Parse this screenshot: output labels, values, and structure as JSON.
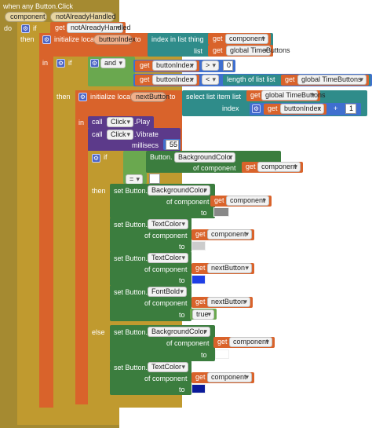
{
  "event": {
    "header": "when any Button.Click",
    "params": [
      "component",
      "notAlreadyHandled"
    ],
    "do_label": "do"
  },
  "outer_if": {
    "if_label": "if",
    "get_label": "get",
    "condition_var": "notAlreadyHandled",
    "then_label": "then"
  },
  "init1": {
    "label": "initialize local",
    "var": "buttonIndex",
    "to_label": "to",
    "index_in_list": "index in list  thing",
    "get_label": "get",
    "thing_var": "component",
    "list_label": "list",
    "list_var": "global TimeButtons",
    "in_label": "in"
  },
  "inner_if": {
    "if_label": "if",
    "and_label": "and",
    "get_label": "get",
    "cmp1_var": "buttonIndex",
    "cmp1_op": ">",
    "cmp1_value": "0",
    "cmp2_var": "buttonIndex",
    "cmp2_op": "<",
    "length_label": "length of list  list",
    "length_list": "global TimeButtons",
    "then_label": "then"
  },
  "init2": {
    "label": "initialize local",
    "var": "nextButton",
    "to_label": "to",
    "select_label": "select list item  list",
    "get_label": "get",
    "list_var": "global TimeButtons",
    "index_label": "index",
    "index_var": "buttonIndex",
    "plus": "+",
    "plus_value": "1",
    "in_label": "in"
  },
  "calls": {
    "call_label": "call",
    "click_comp": "Click",
    "play": ".Play",
    "vibrate": ".Vibrate",
    "millisecs_label": "millisecs",
    "millisecs_value": "55"
  },
  "color_if": {
    "if_label": "if",
    "button_label": "Button.",
    "prop": "BackgroundColor",
    "of_component": "of component",
    "get_label": "get",
    "comp_var": "component",
    "eq": "=",
    "then_label": "then",
    "else_label": "else"
  },
  "then_sets": [
    {
      "prop": "BackgroundColor",
      "target": "component",
      "color": "#888888"
    },
    {
      "prop": "TextColor",
      "target": "component",
      "color": "#cccccc"
    },
    {
      "prop": "TextColor",
      "target": "nextButton",
      "color": "#1f3fe6"
    },
    {
      "prop": "FontBold",
      "target": "nextButton",
      "value": "true"
    }
  ],
  "else_sets": [
    {
      "prop": "BackgroundColor",
      "target": "component",
      "color": "#ffffff"
    },
    {
      "prop": "TextColor",
      "target": "component",
      "color": "#0a1a9a"
    }
  ],
  "set_labels": {
    "set_button": "set Button.",
    "of_component": "of component",
    "to": "to",
    "get": "get"
  },
  "colors": {
    "event_olive": "#a58a31",
    "control_olive": "#c09a2f",
    "variable_orange": "#d9632b",
    "list_teal": "#2f8c8a",
    "component_purple": "#5c3a8a",
    "setter_green": "#3b7d3e",
    "logic_lime": "#6aa84f",
    "math_blue": "#3f6fcf"
  }
}
